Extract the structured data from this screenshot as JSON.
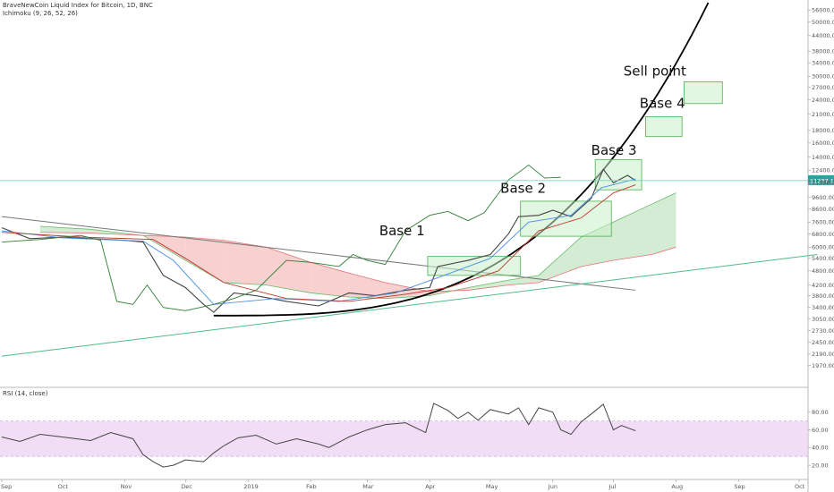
{
  "chart_data": [
    {
      "type": "line",
      "title": "BraveNewCoin Liquid Index for Bitcoin, 1D, BNC",
      "subtitle": "Ichimoku (9, 26, 52, 26)",
      "y_scale": "log",
      "ylim": [
        1700,
        60000
      ],
      "x_ticks": [
        "Sep",
        "Oct",
        "Nov",
        "Dec",
        "2019",
        "Feb",
        "Mar",
        "Apr",
        "May",
        "Jun",
        "Jul",
        "Aug",
        "Sep",
        "Oct"
      ],
      "y_ticks": [
        "56000.00",
        "50000.00",
        "44000.00",
        "38000.00",
        "34000.00",
        "30000.00",
        "27000.00",
        "24000.00",
        "21000.00",
        "18000.00",
        "16000.00",
        "14000.00",
        "12400.00",
        "11000.00",
        "9600.00",
        "8600.00",
        "7600.00",
        "6800.00",
        "6000.00",
        "5400.00",
        "4800.00",
        "4200.00",
        "3800.00",
        "3400.00",
        "3050.00",
        "2730.00",
        "2450.00",
        "2190.00",
        "1970.00"
      ],
      "last_price_label": "11237.17",
      "last_price": 11237.17,
      "series": [
        {
          "name": "close",
          "color": "#444444",
          "x": [
            "2018-09-01",
            "2018-09-15",
            "2018-10-01",
            "2018-10-15",
            "2018-11-01",
            "2018-11-10",
            "2018-11-20",
            "2018-12-01",
            "2018-12-10",
            "2018-12-15",
            "2018-12-25",
            "2019-01-05",
            "2019-01-20",
            "2019-02-05",
            "2019-02-20",
            "2019-03-05",
            "2019-03-20",
            "2019-04-01",
            "2019-04-05",
            "2019-04-20",
            "2019-05-01",
            "2019-05-10",
            "2019-05-15",
            "2019-05-25",
            "2019-06-01",
            "2019-06-10",
            "2019-06-20",
            "2019-06-26",
            "2019-07-01",
            "2019-07-08",
            "2019-07-12"
          ],
          "values": [
            7200,
            6500,
            6600,
            6500,
            6400,
            6300,
            4600,
            4100,
            3500,
            3250,
            3900,
            3800,
            3600,
            3450,
            3900,
            3800,
            4000,
            4100,
            5000,
            5300,
            5600,
            6800,
            8000,
            8100,
            8500,
            8000,
            9500,
            12500,
            11000,
            11800,
            11237
          ]
        },
        {
          "name": "conversion",
          "color": "#4a90e2",
          "x": [
            "2018-09-01",
            "2018-10-01",
            "2018-11-10",
            "2018-11-25",
            "2018-12-15",
            "2019-01-15",
            "2019-02-15",
            "2019-03-15",
            "2019-04-05",
            "2019-05-01",
            "2019-05-20",
            "2019-06-10",
            "2019-06-25",
            "2019-07-12"
          ],
          "values": [
            7000,
            6550,
            6350,
            5300,
            3500,
            3700,
            3600,
            3900,
            4500,
            5400,
            7600,
            8100,
            10500,
            11400
          ]
        },
        {
          "name": "base",
          "color": "#c0392b",
          "x": [
            "2018-09-01",
            "2018-10-10",
            "2018-11-15",
            "2018-12-01",
            "2018-12-20",
            "2019-01-20",
            "2019-02-20",
            "2019-03-20",
            "2019-04-10",
            "2019-05-05",
            "2019-05-25",
            "2019-06-15",
            "2019-07-01",
            "2019-07-12"
          ],
          "values": [
            6900,
            6600,
            6450,
            5400,
            4300,
            3700,
            3600,
            3850,
            4100,
            4800,
            7000,
            7900,
            10000,
            10800
          ]
        },
        {
          "name": "lagging",
          "color": "#2e7d32",
          "x": [
            "2018-09-01",
            "2018-09-20",
            "2018-10-10",
            "2018-10-20",
            "2018-10-28",
            "2018-11-05",
            "2018-11-12",
            "2018-11-20",
            "2018-12-01",
            "2018-12-15",
            "2018-12-25",
            "2019-01-05",
            "2019-01-20",
            "2019-02-01",
            "2019-02-15",
            "2019-02-22",
            "2019-03-01",
            "2019-03-10",
            "2019-03-20",
            "2019-04-01",
            "2019-04-10",
            "2019-04-20",
            "2019-04-28",
            "2019-05-10",
            "2019-05-20",
            "2019-05-28",
            "2019-06-05"
          ],
          "values": [
            6300,
            6450,
            6700,
            6400,
            3600,
            3500,
            4200,
            3400,
            3300,
            3500,
            3700,
            4000,
            5300,
            5200,
            5000,
            5600,
            5300,
            5100,
            7000,
            8100,
            8400,
            7700,
            8300,
            11300,
            13000,
            11500,
            11600
          ]
        }
      ],
      "cloud": {
        "fill_bear": "#f6c8c8",
        "fill_bull": "#cde8cd",
        "x": [
          "2018-09-20",
          "2018-10-15",
          "2018-11-10",
          "2018-12-01",
          "2018-12-20",
          "2019-01-10",
          "2019-02-01",
          "2019-02-20",
          "2019-03-10",
          "2019-04-01",
          "2019-04-20",
          "2019-05-10",
          "2019-05-25",
          "2019-06-15",
          "2019-07-01",
          "2019-07-20",
          "2019-08-01"
        ],
        "span_a": [
          7300,
          7100,
          6700,
          5300,
          4300,
          4200,
          3900,
          3750,
          3700,
          3800,
          4100,
          4400,
          4600,
          6600,
          7600,
          9000,
          10000
        ],
        "span_b": [
          6900,
          6850,
          6700,
          6600,
          6400,
          6000,
          5200,
          4700,
          4300,
          3950,
          4000,
          4200,
          4300,
          5000,
          5300,
          5600,
          6000
        ]
      },
      "trendlines": [
        {
          "color": "#777777",
          "x": [
            "2018-09-01",
            "2019-07-12"
          ],
          "values": [
            8000,
            4000
          ]
        },
        {
          "color": "#4dbd8a",
          "x": [
            "2018-09-01",
            "2019-10-10"
          ],
          "values": [
            2150,
            5600
          ]
        },
        {
          "color": "#000000",
          "curve": "parabolic",
          "x": [
            "2018-12-15",
            "2019-08-17"
          ],
          "values": [
            3150,
            60000
          ]
        }
      ],
      "annotations": [
        {
          "label": "Base 1",
          "x": "2019-03-07",
          "y": 6700
        },
        {
          "label": "Base 2",
          "x": "2019-05-06",
          "y": 10000
        },
        {
          "label": "Base 3",
          "x": "2019-06-20",
          "y": 14300
        },
        {
          "label": "Base 4",
          "x": "2019-07-14",
          "y": 22300
        },
        {
          "label": "Sell point",
          "x": "2019-07-06",
          "y": 30200
        }
      ],
      "boxes": [
        {
          "x": [
            "2019-03-31",
            "2019-05-16"
          ],
          "values": [
            4600,
            5500
          ]
        },
        {
          "x": [
            "2019-05-16",
            "2019-06-30"
          ],
          "values": [
            6650,
            9250
          ]
        },
        {
          "x": [
            "2019-06-22",
            "2019-07-15"
          ],
          "values": [
            10300,
            13700
          ]
        },
        {
          "x": [
            "2019-07-17",
            "2019-08-04"
          ],
          "values": [
            17000,
            20500
          ]
        },
        {
          "x": [
            "2019-08-05",
            "2019-08-24"
          ],
          "values": [
            23200,
            28500
          ]
        }
      ]
    },
    {
      "type": "line",
      "title": "RSI (14, close)",
      "ylim": [
        10,
        95
      ],
      "y_ticks": [
        "80.00",
        "60.00",
        "40.00",
        "20.00"
      ],
      "band": [
        30,
        70
      ],
      "band_color": "#e8c8f0",
      "series": [
        {
          "name": "RSI",
          "color": "#444444",
          "x": [
            "2018-09-01",
            "2018-09-10",
            "2018-09-20",
            "2018-10-01",
            "2018-10-15",
            "2018-10-25",
            "2018-11-05",
            "2018-11-10",
            "2018-11-15",
            "2018-11-20",
            "2018-11-25",
            "2018-12-01",
            "2018-12-10",
            "2018-12-15",
            "2018-12-20",
            "2018-12-27",
            "2019-01-05",
            "2019-01-15",
            "2019-01-25",
            "2019-02-05",
            "2019-02-10",
            "2019-02-20",
            "2019-03-01",
            "2019-03-10",
            "2019-03-20",
            "2019-03-30",
            "2019-04-03",
            "2019-04-10",
            "2019-04-15",
            "2019-04-20",
            "2019-04-25",
            "2019-05-01",
            "2019-05-10",
            "2019-05-15",
            "2019-05-20",
            "2019-05-25",
            "2019-06-01",
            "2019-06-05",
            "2019-06-10",
            "2019-06-15",
            "2019-06-20",
            "2019-06-26",
            "2019-07-01",
            "2019-07-05",
            "2019-07-12"
          ],
          "values": [
            52,
            47,
            55,
            52,
            48,
            57,
            50,
            32,
            24,
            18,
            20,
            26,
            24,
            34,
            42,
            51,
            54,
            44,
            50,
            44,
            40,
            52,
            60,
            66,
            68,
            57,
            90,
            82,
            73,
            80,
            71,
            83,
            78,
            85,
            66,
            85,
            80,
            60,
            55,
            69,
            78,
            89,
            60,
            65,
            59
          ]
        }
      ]
    }
  ]
}
